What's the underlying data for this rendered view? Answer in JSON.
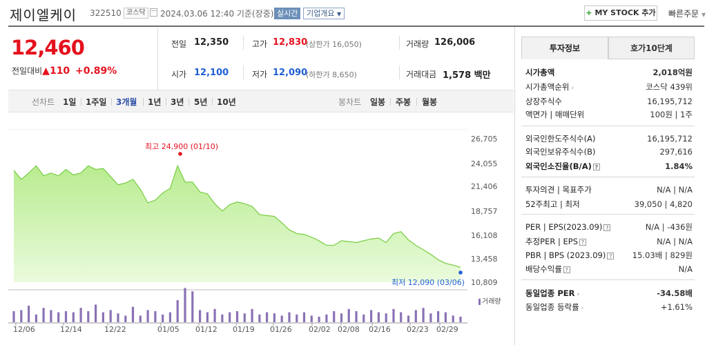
{
  "header": {
    "stock_name": "제이엘케이",
    "code": "322510",
    "exchange_tag": "코스닥",
    "date_text": "2024.03.06 12:40 기준(장중)",
    "realtime_tag": "실시간",
    "company_overview": "기업개요",
    "my_stock_button": "MY STOCK 추가",
    "quick_order": "빠른주문"
  },
  "price": {
    "current": "12,460",
    "change_label": "전일대비",
    "change_value": "110",
    "change_percent": "+0.89%"
  },
  "summary": {
    "prev_close_label": "전일",
    "prev_close": "12,350",
    "high_label": "고가",
    "high": "12,830",
    "upper_limit": "(상한가 16,050)",
    "volume_label": "거래량",
    "volume": "126,006",
    "open_label": "시가",
    "open": "12,100",
    "low_label": "저가",
    "low": "12,090",
    "lower_limit": "(하한가 8,650)",
    "amount_label": "거래대금",
    "amount": "1,578 백만"
  },
  "period_bar": {
    "line_label": "선차트",
    "line_options": [
      "1일",
      "1주일",
      "3개월",
      "1년",
      "3년",
      "5년",
      "10년"
    ],
    "selected": "3개월",
    "candle_label": "봉차트",
    "candle_options": [
      "일봉",
      "주봉",
      "월봉"
    ]
  },
  "right_panel": {
    "tabs": [
      "투자정보",
      "호가10단계"
    ],
    "section1": [
      {
        "k": "시가총액",
        "v": "2,018억원"
      },
      {
        "k": "시가총액순위",
        "v": "코스닥 439위"
      },
      {
        "k": "상장주식수",
        "v": "16,195,712"
      },
      {
        "k": "액면가 | 매매단위",
        "v": "100원 | 1주"
      }
    ],
    "section2": [
      {
        "k": "외국인한도주식수(A)",
        "v": "16,195,712"
      },
      {
        "k": "외국인보유주식수(B)",
        "v": "297,616"
      },
      {
        "k": "외국인소진율(B/A)",
        "v": "1.84%"
      }
    ],
    "section3": [
      {
        "k": "투자의견 | 목표주가",
        "v": "N/A | N/A"
      },
      {
        "k": "52주최고 | 최저",
        "v": "39,050 | 4,820"
      }
    ],
    "section4": [
      {
        "k": "PER | EPS(2023.09)",
        "v": "N/A | -436원"
      },
      {
        "k": "추정PER | EPS",
        "v": "N/A | N/A"
      },
      {
        "k": "PBR | BPS (2023.09)",
        "v": "15.03배 | 829원"
      },
      {
        "k": "배당수익률",
        "v": "N/A"
      }
    ],
    "section5": [
      {
        "k": "동일업종 PER",
        "v": "-34.58배"
      },
      {
        "k": "동일업종 등락률",
        "v": "+1.61%"
      }
    ]
  },
  "chart_data": {
    "type": "area",
    "y_ticks": [
      "26,705",
      "24,055",
      "21,406",
      "18,757",
      "16,108",
      "13,458",
      "10,809"
    ],
    "ylim": [
      10809,
      26705
    ],
    "x_ticks": [
      "12/06",
      "12/14",
      "12/22",
      "01/05",
      "01/12",
      "01/19",
      "01/26",
      "02/02",
      "02/08",
      "02/16",
      "02/23",
      "02/29"
    ],
    "high_annotation": "최고 24,900 (01/10)",
    "low_annotation": "최저 12,090 (03/06)",
    "volume_label": "거래량",
    "prices": [
      23200,
      22200,
      22900,
      23700,
      22600,
      22900,
      22600,
      23300,
      22700,
      22900,
      23700,
      23300,
      23400,
      22500,
      21600,
      21800,
      22200,
      21100,
      19600,
      19900,
      20700,
      21200,
      23700,
      21900,
      21900,
      20800,
      20600,
      19500,
      18700,
      19400,
      19700,
      19500,
      19200,
      18300,
      18200,
      18100,
      17400,
      16600,
      16200,
      16100,
      15800,
      15400,
      14900,
      14900,
      15400,
      15300,
      15200,
      15400,
      15600,
      15700,
      15200,
      16200,
      16400,
      15500,
      14900,
      14400,
      13900,
      13300,
      12900,
      12700,
      12460
    ],
    "volumes": [
      20,
      22,
      30,
      14,
      26,
      22,
      18,
      20,
      18,
      26,
      20,
      32,
      18,
      22,
      16,
      12,
      28,
      12,
      22,
      20,
      14,
      18,
      40,
      62,
      56,
      22,
      18,
      24,
      14,
      18,
      20,
      16,
      24,
      14,
      18,
      16,
      12,
      18,
      14,
      18,
      12,
      10,
      14,
      20,
      16,
      24,
      20,
      14,
      22,
      18,
      16,
      24,
      18,
      12,
      22,
      26,
      16,
      20,
      18,
      12,
      10
    ]
  }
}
